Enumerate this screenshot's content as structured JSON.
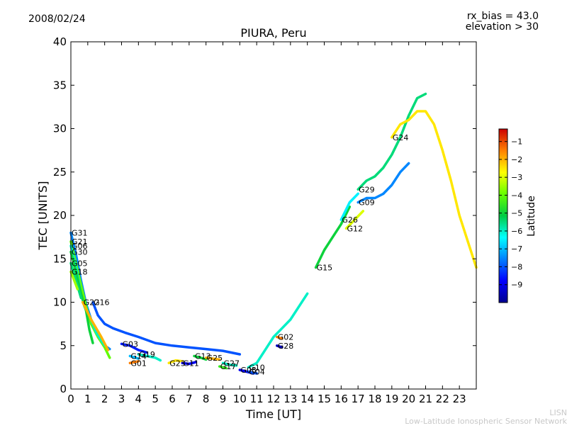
{
  "header": {
    "date": "2008/02/24",
    "rx_bias": "rx_bias = 43.0",
    "elevation": "elevation > 30"
  },
  "watermark": {
    "line1": "LISN",
    "line2": "Low-Latitude Ionospheric Sensor Network"
  },
  "chart_data": {
    "type": "scatter",
    "title": "PIURA, Peru",
    "xlabel": "Time [UT]",
    "ylabel": "TEC [UNITS]",
    "xlim": [
      0,
      24
    ],
    "ylim": [
      0,
      40
    ],
    "xticks": [
      0,
      1,
      2,
      3,
      4,
      5,
      6,
      7,
      8,
      9,
      10,
      11,
      12,
      13,
      14,
      15,
      16,
      17,
      18,
      19,
      20,
      21,
      22,
      23
    ],
    "yticks": [
      0,
      5,
      10,
      15,
      20,
      25,
      30,
      35,
      40
    ],
    "grid": false,
    "colorbar": {
      "label": "Latitude",
      "range": [
        -10,
        -0.3
      ],
      "ticks": [
        -9,
        -8,
        -7,
        -6,
        -5,
        -4,
        -3,
        -2,
        -1
      ]
    },
    "series": [
      {
        "name": "G31",
        "lat": -7.5,
        "points": [
          [
            0,
            18
          ],
          [
            0.3,
            15.5
          ],
          [
            0.6,
            12.5
          ],
          [
            0.9,
            9.8
          ],
          [
            1.2,
            8.0
          ],
          [
            1.6,
            6.5
          ],
          [
            2.0,
            5.0
          ],
          [
            2.3,
            4.6
          ]
        ]
      },
      {
        "name": "G21",
        "lat": -4.0,
        "points": [
          [
            0,
            17
          ],
          [
            0.3,
            14.5
          ],
          [
            0.6,
            12.0
          ],
          [
            0.9,
            9.5
          ],
          [
            1.2,
            7.5
          ],
          [
            1.6,
            6.0
          ],
          [
            2.0,
            4.8
          ],
          [
            2.3,
            3.6
          ]
        ]
      },
      {
        "name": "G06",
        "lat": -6.0,
        "points": [
          [
            0,
            16.5
          ],
          [
            0.3,
            14.0
          ],
          [
            0.6,
            11.0
          ],
          [
            0.8,
            9.5
          ],
          [
            1.2,
            8.0
          ],
          [
            1.5,
            6.5
          ],
          [
            2.0,
            5.0
          ]
        ]
      },
      {
        "name": "G30",
        "lat": -5.0,
        "points": [
          [
            0,
            15.8
          ],
          [
            0.3,
            13.5
          ],
          [
            0.6,
            11.0
          ],
          [
            0.9,
            9.0
          ],
          [
            1.1,
            6.8
          ],
          [
            1.3,
            5.3
          ]
        ]
      },
      {
        "name": "G05",
        "lat": -5.5,
        "points": [
          [
            0,
            14.5
          ],
          [
            0.3,
            12.5
          ],
          [
            0.6,
            10.5
          ]
        ]
      },
      {
        "name": "G18",
        "lat": -3.5,
        "points": [
          [
            0,
            13.5
          ],
          [
            0.2,
            12.5
          ],
          [
            0.4,
            11.5
          ]
        ]
      },
      {
        "name": "G22",
        "lat": -2.0,
        "points": [
          [
            0.7,
            10.0
          ],
          [
            1.2,
            8.0
          ],
          [
            1.8,
            6.0
          ],
          [
            2.2,
            4.5
          ]
        ]
      },
      {
        "name": "G16",
        "lat": -8.0,
        "points": [
          [
            1.3,
            10.0
          ],
          [
            1.6,
            8.5
          ],
          [
            2.0,
            7.5
          ],
          [
            2.5,
            7.0
          ],
          [
            3.2,
            6.5
          ],
          [
            4.0,
            6.0
          ],
          [
            5.0,
            5.3
          ],
          [
            6.0,
            5.0
          ],
          [
            7.0,
            4.8
          ],
          [
            8.0,
            4.6
          ],
          [
            9.0,
            4.4
          ],
          [
            10.0,
            4.0
          ]
        ]
      },
      {
        "name": "G03",
        "lat": -8.5,
        "points": [
          [
            3.0,
            5.2
          ],
          [
            3.5,
            5.0
          ],
          [
            4.0,
            4.5
          ],
          [
            4.5,
            4.2
          ]
        ]
      },
      {
        "name": "G14",
        "lat": -7.0,
        "points": [
          [
            3.5,
            3.8
          ],
          [
            4.0,
            3.5
          ]
        ]
      },
      {
        "name": "G01",
        "lat": -1.5,
        "points": [
          [
            3.5,
            3.0
          ],
          [
            4.0,
            3.2
          ]
        ]
      },
      {
        "name": "G19",
        "lat": -6.0,
        "points": [
          [
            4.0,
            4.0
          ],
          [
            4.5,
            3.8
          ],
          [
            5.0,
            3.6
          ],
          [
            5.3,
            3.3
          ]
        ]
      },
      {
        "name": "G23",
        "lat": -2.5,
        "points": [
          [
            5.8,
            3.0
          ],
          [
            6.2,
            3.3
          ],
          [
            6.6,
            3.2
          ]
        ]
      },
      {
        "name": "G11",
        "lat": -9.0,
        "points": [
          [
            6.6,
            3.0
          ],
          [
            7.0,
            2.9
          ],
          [
            7.4,
            3.1
          ]
        ]
      },
      {
        "name": "G13",
        "lat": -5.0,
        "points": [
          [
            7.3,
            3.8
          ],
          [
            7.7,
            3.6
          ],
          [
            8.0,
            3.4
          ]
        ]
      },
      {
        "name": "G25",
        "lat": -2.0,
        "points": [
          [
            8.0,
            3.6
          ],
          [
            8.4,
            3.5
          ],
          [
            8.8,
            3.4
          ]
        ]
      },
      {
        "name": "G27",
        "lat": -6.0,
        "points": [
          [
            9.0,
            3.0
          ],
          [
            9.4,
            2.8
          ],
          [
            9.8,
            2.7
          ]
        ]
      },
      {
        "name": "G17",
        "lat": -4.5,
        "points": [
          [
            8.8,
            2.6
          ],
          [
            9.2,
            2.4
          ]
        ]
      },
      {
        "name": "G08",
        "lat": -9.0,
        "points": [
          [
            10.0,
            2.2
          ],
          [
            10.4,
            2.0
          ],
          [
            10.8,
            1.8
          ]
        ]
      },
      {
        "name": "G04",
        "lat": -8.0,
        "points": [
          [
            10.5,
            2.0
          ],
          [
            11.0,
            1.8
          ]
        ]
      },
      {
        "name": "G02",
        "lat": -1.5,
        "points": [
          [
            12.2,
            6.0
          ],
          [
            12.5,
            5.8
          ]
        ]
      },
      {
        "name": "G28",
        "lat": -9.5,
        "points": [
          [
            12.2,
            5.0
          ],
          [
            12.5,
            4.8
          ]
        ]
      },
      {
        "name": "G10",
        "lat": -6.0,
        "points": [
          [
            10.5,
            2.5
          ],
          [
            11.0,
            3.0
          ],
          [
            11.5,
            4.5
          ],
          [
            12.0,
            6.0
          ],
          [
            12.5,
            7.0
          ],
          [
            13.0,
            8.0
          ],
          [
            13.5,
            9.5
          ],
          [
            14.0,
            11.0
          ]
        ]
      },
      {
        "name": "G15",
        "lat": -5.0,
        "points": [
          [
            14.5,
            14.0
          ],
          [
            15.0,
            16.0
          ],
          [
            15.5,
            17.5
          ],
          [
            16.0,
            19.0
          ],
          [
            16.5,
            21.0
          ]
        ]
      },
      {
        "name": "G26",
        "lat": -6.5,
        "points": [
          [
            16.0,
            19.5
          ],
          [
            16.5,
            21.5
          ],
          [
            17.0,
            22.5
          ]
        ]
      },
      {
        "name": "G12",
        "lat": -3.0,
        "points": [
          [
            16.3,
            18.5
          ],
          [
            16.8,
            19.5
          ],
          [
            17.3,
            20.5
          ]
        ]
      },
      {
        "name": "G09",
        "lat": -7.5,
        "points": [
          [
            17.0,
            21.5
          ],
          [
            17.5,
            22.0
          ],
          [
            18.0,
            22.0
          ],
          [
            18.5,
            22.5
          ],
          [
            19.0,
            23.5
          ],
          [
            19.5,
            25.0
          ],
          [
            20.0,
            26.0
          ]
        ]
      },
      {
        "name": "G29",
        "lat": -5.5,
        "points": [
          [
            17.0,
            23.0
          ],
          [
            17.5,
            24.0
          ],
          [
            18.0,
            24.5
          ],
          [
            18.5,
            25.5
          ],
          [
            19.0,
            27.0
          ],
          [
            19.5,
            29.0
          ],
          [
            20.0,
            31.5
          ],
          [
            20.5,
            33.5
          ],
          [
            21.0,
            34.0
          ]
        ]
      },
      {
        "name": "G24",
        "lat": -2.5,
        "points": [
          [
            19.0,
            29.0
          ],
          [
            19.5,
            30.5
          ],
          [
            20.0,
            31.0
          ],
          [
            20.5,
            32.0
          ],
          [
            21.0,
            32.0
          ],
          [
            21.5,
            30.5
          ],
          [
            22.0,
            27.5
          ],
          [
            22.5,
            24.0
          ],
          [
            23.0,
            20.0
          ],
          [
            23.5,
            17.0
          ],
          [
            24.0,
            14.0
          ]
        ]
      }
    ]
  }
}
